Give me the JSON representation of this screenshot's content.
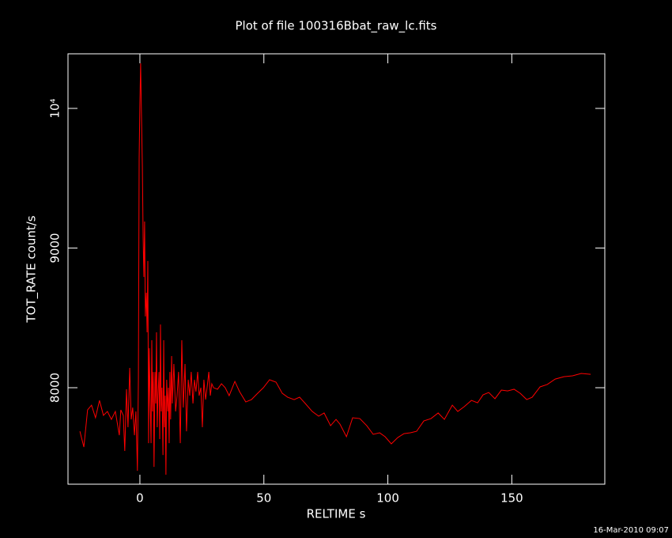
{
  "chart_data": {
    "type": "line",
    "title": "Plot of file 100316Bbat_raw_lc.fits",
    "x_label": "RELTIME  s",
    "y_label": "TOT_RATE  count/s",
    "footer": "16-Mar-2010 09:07",
    "xlim": [
      -29,
      187.5
    ],
    "ylim": [
      7309,
      10391
    ],
    "xticks": [
      0,
      50,
      100,
      150
    ],
    "yticks": [
      8000,
      9000,
      {
        "value": 10000,
        "label": "10⁴"
      }
    ],
    "series": [
      {
        "name": "TOT_RATE",
        "color": "#ff0000",
        "x": [
          -24.2,
          -22.6,
          -21.1,
          -19.5,
          -17.9,
          -16.3,
          -14.7,
          -13.1,
          -11.5,
          -9.9,
          -8.3,
          -7.7,
          -6.7,
          -6.1,
          -5.4,
          -4.8,
          -4.1,
          -3.5,
          -2.9,
          -2.2,
          -1.6,
          -1.0,
          -0.6,
          -0.3,
          0,
          0.3,
          0.6,
          1.0,
          1.3,
          1.6,
          1.9,
          2.2,
          2.6,
          2.9,
          3.2,
          3.5,
          3.8,
          4.1,
          4.5,
          4.8,
          5.1,
          5.4,
          5.7,
          6.1,
          6.4,
          6.7,
          7.0,
          7.3,
          7.7,
          8.0,
          8.3,
          8.6,
          8.9,
          9.3,
          9.6,
          9.9,
          10.2,
          10.5,
          10.8,
          11.2,
          11.5,
          11.8,
          12.1,
          12.4,
          12.8,
          13.1,
          13.7,
          14.4,
          15.0,
          15.6,
          16.3,
          16.9,
          17.5,
          18.2,
          18.8,
          19.5,
          20.1,
          20.7,
          21.4,
          22.0,
          22.6,
          23.3,
          23.9,
          24.6,
          25.2,
          25.8,
          26.5,
          27.1,
          27.8,
          28.4,
          29.0,
          29.7,
          31.3,
          32.9,
          34.4,
          36.0,
          38.3,
          40.2,
          42.7,
          45.0,
          47.2,
          49.8,
          52.3,
          54.9,
          57.4,
          59.6,
          62.2,
          64.4,
          66.7,
          69.5,
          72.1,
          74.3,
          76.9,
          79.1,
          80.7,
          83.3,
          85.8,
          88.7,
          91.5,
          94.1,
          96.7,
          98.9,
          101.4,
          104.0,
          106.5,
          109.1,
          111.6,
          114.5,
          117.4,
          120.3,
          122.8,
          126.0,
          128.2,
          130.8,
          133.7,
          136.2,
          138.4,
          140.7,
          143.2,
          145.8,
          148.3,
          150.9,
          153.4,
          156.0,
          158.2,
          161.4,
          164.3,
          167.5,
          171.0,
          174.5,
          178.0,
          181.8
        ],
        "values": [
          7688,
          7575,
          7841,
          7875,
          7785,
          7909,
          7802,
          7830,
          7773,
          7830,
          7660,
          7841,
          7802,
          7547,
          7989,
          7717,
          8142,
          7773,
          7858,
          7660,
          7830,
          7405,
          8057,
          9643,
          10040,
          10323,
          9983,
          9586,
          9077,
          8793,
          9190,
          8510,
          8680,
          8397,
          8907,
          7603,
          8283,
          7943,
          7603,
          8340,
          7830,
          8113,
          7433,
          8113,
          7887,
          8397,
          7717,
          7943,
          8113,
          7632,
          8453,
          7830,
          8000,
          7518,
          8340,
          7717,
          7943,
          7377,
          8057,
          7830,
          8000,
          7603,
          8113,
          7773,
          8227,
          7887,
          8170,
          7830,
          7943,
          8113,
          7603,
          8340,
          7858,
          8170,
          7688,
          8057,
          7943,
          8113,
          7887,
          8057,
          7972,
          8113,
          7943,
          8000,
          7717,
          8057,
          7915,
          8000,
          8113,
          7943,
          8028,
          8000,
          7989,
          8028,
          8000,
          7943,
          8045,
          7972,
          7898,
          7915,
          7955,
          8000,
          8057,
          8040,
          7960,
          7932,
          7915,
          7932,
          7887,
          7830,
          7796,
          7819,
          7728,
          7773,
          7739,
          7649,
          7785,
          7779,
          7728,
          7666,
          7677,
          7649,
          7598,
          7643,
          7671,
          7677,
          7688,
          7762,
          7779,
          7819,
          7773,
          7875,
          7830,
          7864,
          7909,
          7892,
          7949,
          7966,
          7921,
          7983,
          7977,
          7989,
          7960,
          7915,
          7932,
          8006,
          8023,
          8062,
          8079,
          8085,
          8102,
          8096
        ]
      }
    ]
  }
}
